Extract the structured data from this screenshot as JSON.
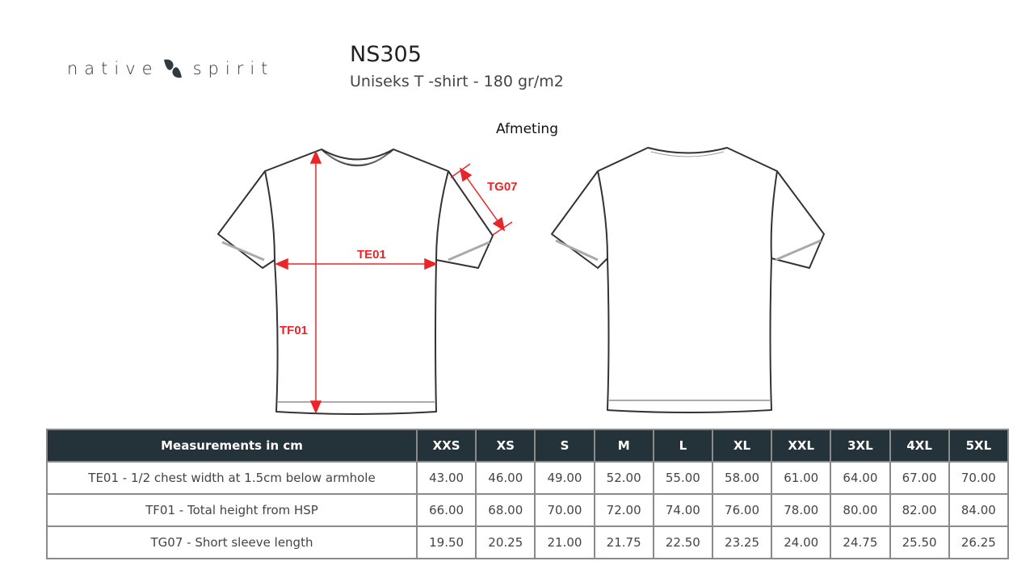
{
  "brand": {
    "logo_text_left": "native",
    "logo_text_right": "spirit",
    "logo_icon": "swirl-logo-icon"
  },
  "product": {
    "code": "NS305",
    "description": "Uniseks T -shirt - 180 gr/m2"
  },
  "heading": "Afmeting",
  "diagram": {
    "labels": {
      "chest": "TE01",
      "height": "TF01",
      "sleeve": "TG07"
    },
    "arrow_color": "#e8262a"
  },
  "table": {
    "header": "Measurements in cm",
    "sizes": [
      "XXS",
      "XS",
      "S",
      "M",
      "L",
      "XL",
      "XXL",
      "3XL",
      "4XL",
      "5XL"
    ],
    "rows": [
      {
        "label": "TE01 - 1/2 chest width at 1.5cm below armhole",
        "values": [
          "43.00",
          "46.00",
          "49.00",
          "52.00",
          "55.00",
          "58.00",
          "61.00",
          "64.00",
          "67.00",
          "70.00"
        ]
      },
      {
        "label": "TF01 - Total height from HSP",
        "values": [
          "66.00",
          "68.00",
          "70.00",
          "72.00",
          "74.00",
          "76.00",
          "78.00",
          "80.00",
          "82.00",
          "84.00"
        ]
      },
      {
        "label": "TG07 - Short sleeve length",
        "values": [
          "19.50",
          "20.25",
          "21.00",
          "21.75",
          "22.50",
          "23.25",
          "24.00",
          "24.75",
          "25.50",
          "26.25"
        ]
      }
    ],
    "header_color": "#24323a"
  }
}
